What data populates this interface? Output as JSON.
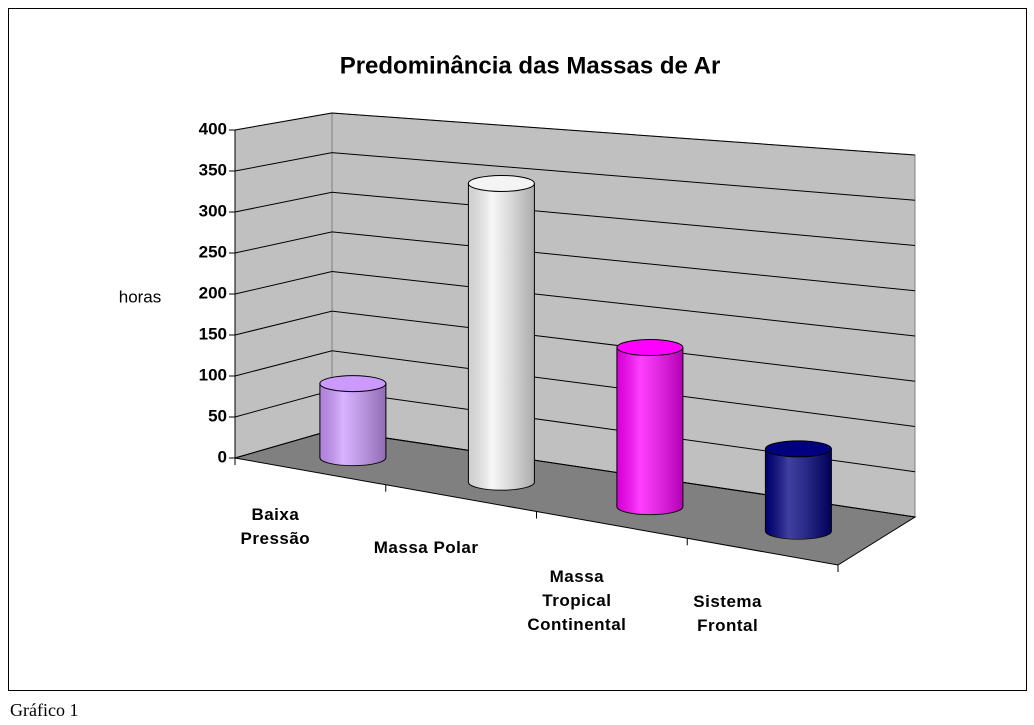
{
  "chart_data": {
    "type": "bar3d",
    "title": "Predominância das Massas de Ar",
    "y_label": "horas",
    "categories": [
      "Baixa Pressão",
      "Massa Polar",
      "Massa Tropical Continental",
      "Sistema Frontal"
    ],
    "values": [
      90,
      350,
      180,
      90
    ],
    "colors": [
      "#cc99ff",
      "#f4f4f4",
      "#ff00ff",
      "#000080"
    ],
    "ylim": [
      0,
      400
    ],
    "yticks": [
      0,
      50,
      100,
      150,
      200,
      250,
      300,
      350,
      400
    ],
    "grid": true
  },
  "caption": "Gráfico 1"
}
